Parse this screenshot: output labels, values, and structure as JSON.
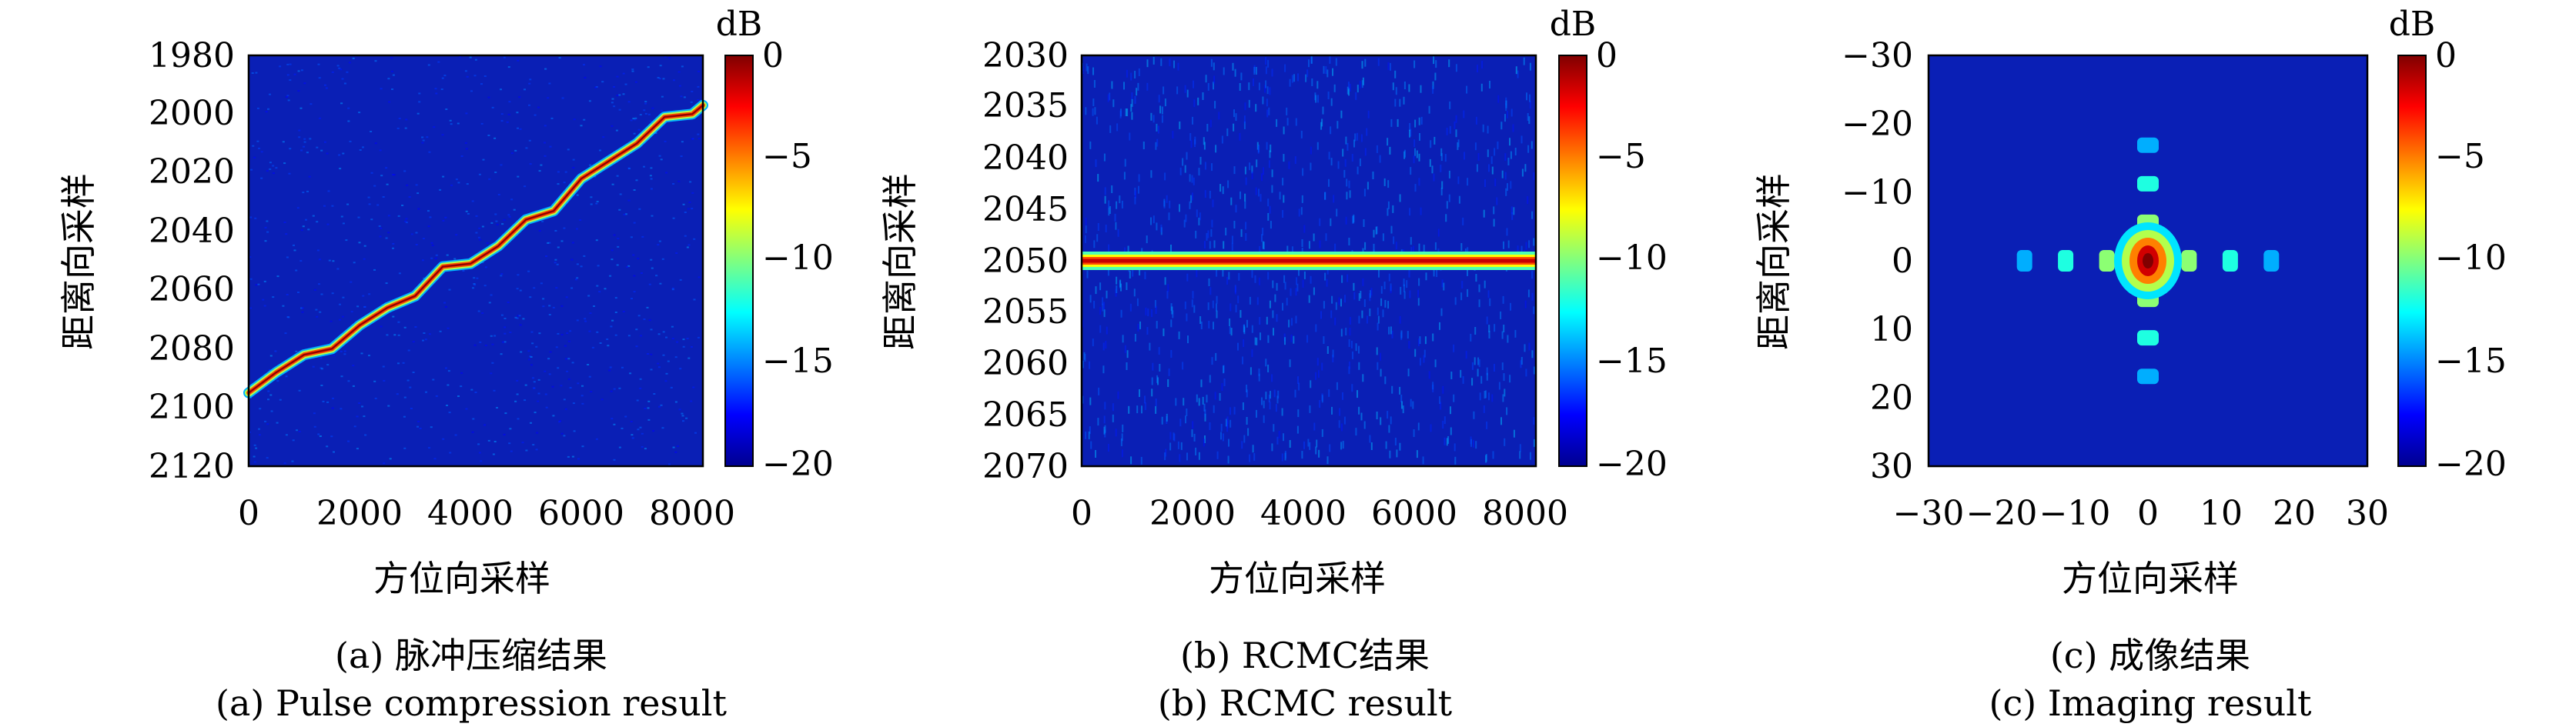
{
  "colormap": [
    "#00008f",
    "#0000ff",
    "#00ffff",
    "#ffff00",
    "#ff0000",
    "#800000"
  ],
  "background_color": "#0a1fb5",
  "panels": [
    {
      "caption_cn": "(a) 脉冲压缩结果",
      "caption_en": "(a) Pulse compression result",
      "xlabel": "方位向采样",
      "ylabel": "距离向采样",
      "colorbar": {
        "unit": "dB",
        "ticks": [
          "0",
          "−5",
          "−10",
          "−15",
          "−20"
        ]
      },
      "xticks": [
        "0",
        "2000",
        "4000",
        "6000",
        "8000"
      ],
      "yticks": [
        "1980",
        "2000",
        "2020",
        "2040",
        "2060",
        "2080",
        "2100",
        "2120"
      ]
    },
    {
      "caption_cn": "(b) RCMC结果",
      "caption_en": "(b) RCMC result",
      "xlabel": "方位向采样",
      "ylabel": "距离向采样",
      "colorbar": {
        "unit": "dB",
        "ticks": [
          "0",
          "−5",
          "−10",
          "−15",
          "−20"
        ]
      },
      "xticks": [
        "0",
        "2000",
        "4000",
        "6000",
        "8000"
      ],
      "yticks": [
        "2030",
        "2035",
        "2040",
        "2045",
        "2050",
        "2055",
        "2060",
        "2065",
        "2070"
      ]
    },
    {
      "caption_cn": "(c) 成像结果",
      "caption_en": "(c) Imaging result",
      "xlabel": "方位向采样",
      "ylabel": "距离向采样",
      "colorbar": {
        "unit": "dB",
        "ticks": [
          "0",
          "−5",
          "−10",
          "−15",
          "−20"
        ]
      },
      "xticks": [
        "−30",
        "−20",
        "−10",
        "0",
        "10",
        "20",
        "30"
      ],
      "yticks": [
        "−30",
        "−20",
        "−10",
        "0",
        "10",
        "20",
        "30"
      ]
    }
  ],
  "chart_data": [
    {
      "type": "heatmap",
      "title": "",
      "xlabel": "方位向采样",
      "ylabel": "距离向采样",
      "xlim": [
        0,
        8192
      ],
      "ylim": [
        1980,
        2120
      ],
      "color_range_db": [
        -20,
        0
      ],
      "trace": {
        "description_values": "range migration curve (azimuth sample, range sample)",
        "x": [
          0,
          500,
          1000,
          1500,
          2000,
          2500,
          3000,
          3500,
          4000,
          4500,
          5000,
          5500,
          6000,
          6500,
          7000,
          7500,
          8000,
          8192
        ],
        "y": [
          2095,
          2088,
          2082,
          2080,
          2072,
          2066,
          2062,
          2052,
          2051,
          2045,
          2036,
          2033,
          2022,
          2016,
          2010,
          2001,
          2000,
          1997
        ]
      }
    },
    {
      "type": "heatmap",
      "title": "",
      "xlabel": "方位向采样",
      "ylabel": "距离向采样",
      "xlim": [
        0,
        8192
      ],
      "ylim": [
        2030,
        2070
      ],
      "color_range_db": [
        -20,
        0
      ],
      "band": {
        "range_center": 2050,
        "range_width": 1.5,
        "peak_db": -1
      }
    },
    {
      "type": "heatmap",
      "title": "",
      "xlabel": "方位向采样",
      "ylabel": "距离向采样",
      "xlim": [
        -32,
        32
      ],
      "ylim": [
        -32,
        32
      ],
      "color_range_db": [
        -20,
        0
      ],
      "peak": {
        "x": 0,
        "y": 0,
        "db": 0
      },
      "sidelobes_x": [
        -18,
        -12,
        -6,
        6,
        12,
        18
      ],
      "sidelobes_y": [
        -18,
        -12,
        -6,
        6,
        12,
        18
      ]
    }
  ]
}
